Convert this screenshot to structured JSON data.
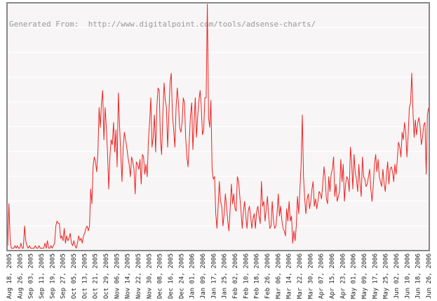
{
  "chart_data": {
    "type": "line",
    "title": "",
    "xlabel": "",
    "ylabel": "",
    "watermark": "Generated From:  http://www.digitalpoint.com/tools/adsense-charts/",
    "grid": true,
    "legend": "none",
    "x_tick_labels": [
      "Aug 18, 2005",
      "Aug 26, 2005",
      "Sep 03, 2005",
      "Sep 11, 2005",
      "Sep 19, 2005",
      "Sep 27, 2005",
      "Oct 05, 2005",
      "Oct 13, 2005",
      "Oct 21, 2005",
      "Oct 29, 2005",
      "Nov 06, 2005",
      "Nov 14, 2005",
      "Nov 22, 2005",
      "Nov 30, 2005",
      "Dec 08, 2005",
      "Dec 16, 2005",
      "Dec 24, 2005",
      "Jan 01, 2006",
      "Jan 09, 2006",
      "Jan 17, 2006",
      "Jan 25, 2006",
      "Feb 02, 2006",
      "Feb 10, 2006",
      "Feb 18, 2006",
      "Feb 26, 2006",
      "Mar 06, 2006",
      "Mar 14, 2006",
      "Mar 22, 2006",
      "Mar 30, 2006",
      "Apr 07, 2006",
      "Apr 15, 2006",
      "Apr 23, 2006",
      "May 01, 2006",
      "May 09, 2006",
      "May 17, 2006",
      "May 25, 2006",
      "Jun 02, 2006",
      "Jun 10, 2006",
      "Jun 18, 2006",
      "Jun 26, 2006"
    ],
    "ylim": [
      0,
      100
    ],
    "series": [
      {
        "color": "#ee2222",
        "values": [
          2,
          19,
          5,
          1,
          1,
          1,
          2,
          1,
          2,
          1,
          1,
          3,
          1,
          1,
          10,
          4,
          2,
          1,
          2,
          1,
          1,
          1,
          1,
          2,
          1,
          1,
          2,
          1,
          1,
          1,
          1,
          3,
          1,
          4,
          1,
          1,
          2,
          1,
          2,
          3,
          10,
          12,
          11,
          11,
          5,
          6,
          4,
          9,
          3,
          6,
          4,
          5,
          7,
          3,
          2,
          4,
          2,
          1,
          3,
          6,
          4,
          5,
          3,
          6,
          7,
          9,
          10,
          8,
          10,
          25,
          19,
          34,
          38,
          36,
          32,
          40,
          58,
          50,
          60,
          65,
          45,
          58,
          50,
          40,
          25,
          38,
          45,
          43,
          52,
          40,
          49,
          34,
          64,
          51,
          40,
          28,
          42,
          48,
          45,
          42,
          38,
          35,
          30,
          38,
          36,
          33,
          23,
          36,
          35,
          33,
          37,
          27,
          39,
          38,
          31,
          35,
          30,
          45,
          52,
          62,
          42,
          46,
          55,
          40,
          58,
          66,
          65,
          45,
          39,
          55,
          68,
          61,
          58,
          42,
          55,
          68,
          72,
          55,
          49,
          42,
          58,
          66,
          60,
          50,
          48,
          52,
          62,
          60,
          46,
          38,
          34,
          45,
          55,
          60,
          41,
          52,
          62,
          46,
          55,
          61,
          65,
          58,
          47,
          49,
          62,
          62,
          100,
          54,
          50,
          61,
          33,
          29,
          30,
          15,
          9,
          18,
          28,
          20,
          18,
          10,
          15,
          23,
          18,
          12,
          8,
          17,
          27,
          19,
          23,
          17,
          16,
          30,
          28,
          22,
          16,
          9,
          16,
          20,
          14,
          9,
          16,
          18,
          14,
          9,
          13,
          15,
          9,
          16,
          18,
          14,
          11,
          28,
          18,
          20,
          12,
          17,
          22,
          14,
          9,
          10,
          20,
          12,
          9,
          10,
          15,
          23,
          14,
          18,
          12,
          9,
          8,
          6,
          17,
          12,
          20,
          12,
          14,
          3,
          8,
          4,
          10,
          22,
          15,
          25,
          35,
          55,
          30,
          21,
          15,
          21,
          23,
          17,
          20,
          25,
          28,
          18,
          21,
          17,
          20,
          24,
          23,
          21,
          27,
          34,
          29,
          21,
          19,
          30,
          24,
          31,
          33,
          38,
          22,
          27,
          20,
          22,
          24,
          37,
          28,
          35,
          20,
          27,
          30,
          29,
          24,
          42,
          36,
          25,
          39,
          32,
          29,
          24,
          35,
          27,
          22,
          38,
          30,
          29,
          26,
          27,
          30,
          33,
          25,
          20,
          26,
          35,
          39,
          32,
          37,
          30,
          28,
          26,
          33,
          27,
          24,
          31,
          36,
          27,
          33,
          34,
          32,
          28,
          35,
          31,
          37,
          44,
          42,
          38,
          48,
          45,
          52,
          48,
          38,
          47,
          58,
          60,
          72,
          57,
          46,
          53,
          47,
          52,
          54,
          50,
          43,
          46,
          51,
          52,
          31,
          55,
          58
        ]
      }
    ]
  }
}
